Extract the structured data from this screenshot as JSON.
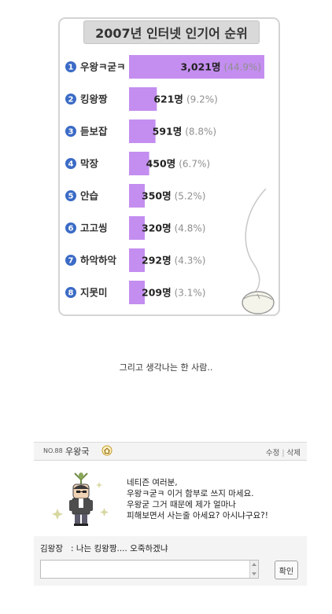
{
  "chart_data": {
    "type": "bar",
    "title": "2007년 인터넷 인기어 순위",
    "ranks": [
      "1",
      "2",
      "3",
      "4",
      "5",
      "6",
      "7",
      "8"
    ],
    "categories": [
      "우왕ㅋ굳ㅋ",
      "킹왕짱",
      "듣보잡",
      "막장",
      "안습",
      "고고씽",
      "하악하악",
      "지못미"
    ],
    "values": [
      3021,
      621,
      591,
      450,
      350,
      320,
      292,
      209
    ],
    "value_labels": [
      "3,021명",
      "621명",
      "591명",
      "450명",
      "350명",
      "320명",
      "292명",
      "209명"
    ],
    "percent_labels": [
      "(44.9%)",
      "(9.2%)",
      "(8.8%)",
      "(6.7%)",
      "(5.2%)",
      "(4.8%)",
      "(4.3%)",
      "(3.1%)"
    ],
    "bar_color": "#c48ef0",
    "rank_badge_color": "#3b6bc6",
    "legend": false,
    "grid": false
  },
  "caption": "그리고 생각나는 한 사람..",
  "guestbook": {
    "number": "NO.88",
    "name": "우왕국",
    "home_icon": "home-icon",
    "edit_label": "수정",
    "separator": "|",
    "delete_label": "삭제",
    "message_lines": [
      "네티즌 여러분,",
      "우왕ㅋ굳ㅋ 이거 함부로 쓰지 마세요.",
      "우왕굳 그거 때문에 제가 얼마나",
      "피해보면서 사는줄 아세요? 아시냐구요?!"
    ],
    "comment": {
      "author": "김왕장",
      "text": ": 나는 킹왕짱.... 오죽하겠냐"
    },
    "comment_input_value": "",
    "confirm_label": "확인"
  }
}
